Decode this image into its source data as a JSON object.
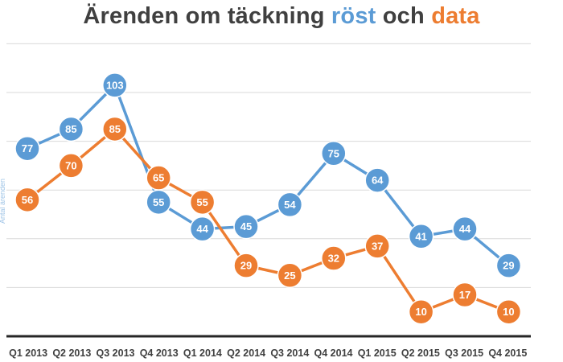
{
  "chart_data": {
    "type": "line",
    "title": {
      "prefix": "Ärenden om täckning ",
      "series1_word": "röst",
      "middle": " och ",
      "series2_word": "data"
    },
    "ylabel": "Antal ärenden",
    "categories": [
      "Q1 2013",
      "Q2 2013",
      "Q3 2013",
      "Q4 2013",
      "Q1 2014",
      "Q2 2014",
      "Q3 2014",
      "Q4 2014",
      "Q1 2015",
      "Q2 2015",
      "Q3 2015",
      "Q4 2015"
    ],
    "series": [
      {
        "name": "röst",
        "color": "#5b9bd5",
        "values": [
          77,
          85,
          103,
          55,
          44,
          45,
          54,
          75,
          64,
          41,
          44,
          29
        ]
      },
      {
        "name": "data",
        "color": "#ed7d31",
        "values": [
          56,
          70,
          85,
          65,
          55,
          29,
          25,
          32,
          37,
          10,
          17,
          10
        ]
      }
    ],
    "ylim": [
      0,
      120
    ],
    "gridlines": true,
    "legend": "none"
  }
}
